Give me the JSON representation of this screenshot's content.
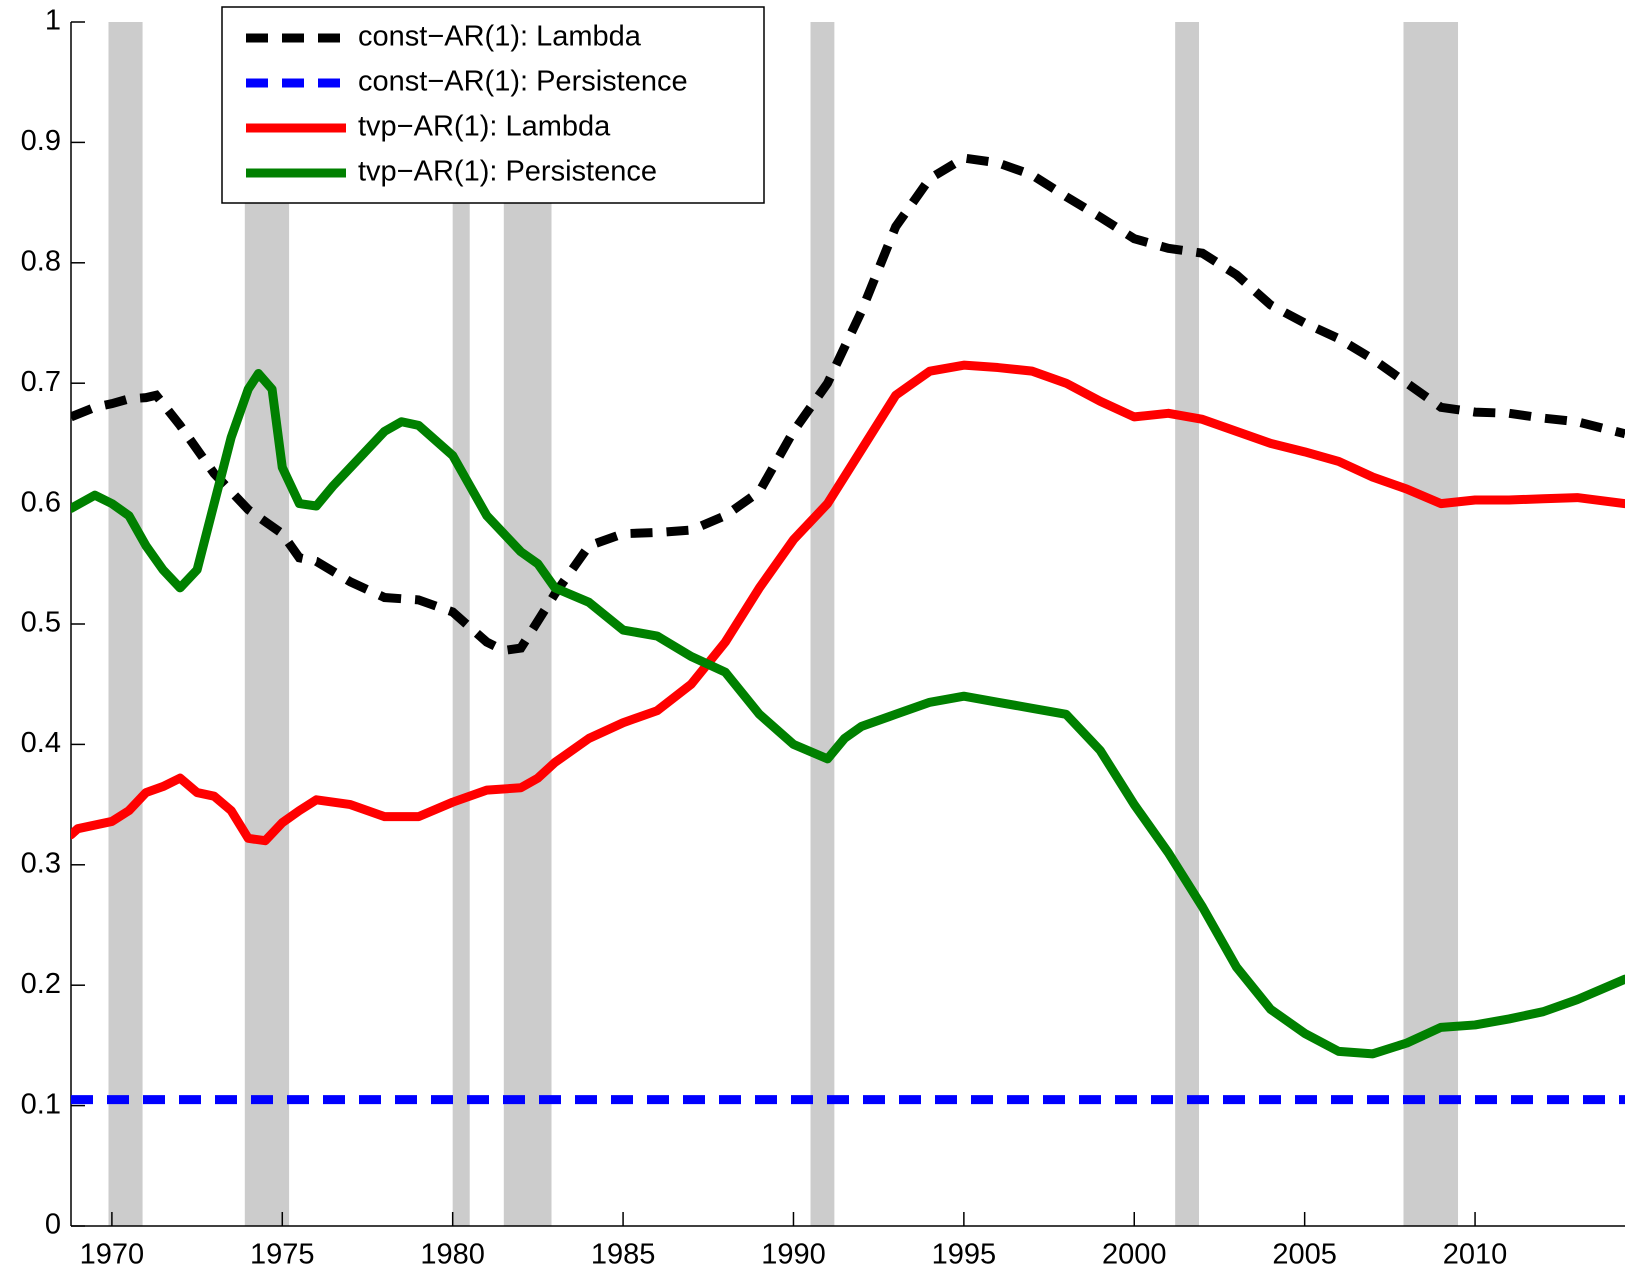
{
  "chart_data": {
    "type": "line",
    "xlim": [
      1968.8,
      2014.4
    ],
    "ylim": [
      0,
      1
    ],
    "xticks": [
      1970,
      1975,
      1980,
      1985,
      1990,
      1995,
      2000,
      2005,
      2010
    ],
    "yticks": [
      0,
      0.1,
      0.2,
      0.3,
      0.4,
      0.5,
      0.6,
      0.7,
      0.8,
      0.9,
      1
    ],
    "legend": "upper left",
    "shade_color": "#cccccc",
    "shaded_periods": [
      [
        1969.9,
        1970.9
      ],
      [
        1973.9,
        1975.2
      ],
      [
        1980.0,
        1980.5
      ],
      [
        1981.5,
        1982.9
      ],
      [
        1990.5,
        1991.2
      ],
      [
        2001.2,
        2001.9
      ],
      [
        2007.9,
        2009.5
      ]
    ],
    "series": [
      {
        "name": "const−AR(1): Lambda",
        "color": "#000000",
        "dashed": true,
        "x": [
          1968.8,
          1969.5,
          1970,
          1970.5,
          1971,
          1971.3,
          1972,
          1973,
          1974,
          1975,
          1975.5,
          1976,
          1977,
          1978,
          1979,
          1980,
          1981,
          1981.5,
          1982,
          1983,
          1984,
          1985,
          1986,
          1987,
          1988,
          1989,
          1990,
          1991,
          1992,
          1993,
          1994,
          1995,
          1996,
          1997,
          1998,
          1999,
          2000,
          2001,
          2002,
          2003,
          2004,
          2005,
          2006,
          2007,
          2008,
          2009,
          2010,
          2011,
          2012,
          2013,
          2014.4
        ],
        "values": [
          0.672,
          0.68,
          0.683,
          0.687,
          0.688,
          0.69,
          0.665,
          0.625,
          0.595,
          0.575,
          0.555,
          0.552,
          0.535,
          0.522,
          0.52,
          0.51,
          0.485,
          0.478,
          0.48,
          0.525,
          0.565,
          0.575,
          0.576,
          0.578,
          0.59,
          0.61,
          0.66,
          0.7,
          0.76,
          0.83,
          0.87,
          0.887,
          0.883,
          0.873,
          0.855,
          0.838,
          0.82,
          0.812,
          0.808,
          0.79,
          0.765,
          0.75,
          0.737,
          0.72,
          0.7,
          0.68,
          0.676,
          0.675,
          0.671,
          0.668,
          0.658
        ]
      },
      {
        "name": "const−AR(1): Persistence",
        "color": "#0000ff",
        "dashed": true,
        "x": [
          1968.8,
          2014.4
        ],
        "values": [
          0.105,
          0.105
        ]
      },
      {
        "name": "tvp−AR(1): Lambda",
        "color": "#ff0000",
        "dashed": false,
        "x": [
          1968.8,
          1969,
          1970,
          1970.5,
          1971,
          1971.5,
          1972,
          1972.5,
          1973,
          1973.5,
          1974,
          1974.5,
          1975,
          1975.5,
          1976,
          1977,
          1978,
          1979,
          1980,
          1981,
          1982,
          1982.5,
          1983,
          1984,
          1985,
          1986,
          1987,
          1988,
          1989,
          1990,
          1991,
          1992,
          1993,
          1994,
          1995,
          1996,
          1997,
          1998,
          1999,
          2000,
          2001,
          2002,
          2003,
          2004,
          2005,
          2006,
          2007,
          2008,
          2009,
          2010,
          2011,
          2012,
          2013,
          2014.4
        ],
        "values": [
          0.325,
          0.33,
          0.336,
          0.345,
          0.36,
          0.365,
          0.372,
          0.36,
          0.357,
          0.345,
          0.322,
          0.32,
          0.335,
          0.345,
          0.354,
          0.35,
          0.34,
          0.34,
          0.352,
          0.362,
          0.364,
          0.372,
          0.385,
          0.405,
          0.418,
          0.428,
          0.45,
          0.485,
          0.53,
          0.57,
          0.6,
          0.645,
          0.69,
          0.71,
          0.715,
          0.713,
          0.71,
          0.7,
          0.685,
          0.672,
          0.675,
          0.67,
          0.66,
          0.65,
          0.643,
          0.635,
          0.622,
          0.612,
          0.6,
          0.603,
          0.603,
          0.604,
          0.605,
          0.6
        ]
      },
      {
        "name": "tvp−AR(1): Persistence",
        "color": "#008000",
        "dashed": false,
        "x": [
          1968.8,
          1969.5,
          1970,
          1970.5,
          1971,
          1971.5,
          1972,
          1972.5,
          1973,
          1973.5,
          1974,
          1974.3,
          1974.7,
          1975,
          1975.5,
          1976,
          1976.5,
          1977,
          1978,
          1978.5,
          1979,
          1980,
          1980.5,
          1981,
          1982,
          1982.5,
          1983,
          1984,
          1985,
          1986,
          1987,
          1988,
          1989,
          1990,
          1991,
          1991.5,
          1992,
          1993,
          1994,
          1995,
          1996,
          1997,
          1998,
          1999,
          2000,
          2001,
          2002,
          2003,
          2004,
          2005,
          2006,
          2007,
          2008,
          2009,
          2010,
          2011,
          2012,
          2013,
          2014.4
        ],
        "values": [
          0.596,
          0.607,
          0.6,
          0.59,
          0.565,
          0.545,
          0.53,
          0.545,
          0.6,
          0.655,
          0.695,
          0.708,
          0.695,
          0.63,
          0.6,
          0.598,
          0.615,
          0.63,
          0.66,
          0.668,
          0.665,
          0.64,
          0.615,
          0.59,
          0.56,
          0.55,
          0.53,
          0.518,
          0.495,
          0.49,
          0.473,
          0.46,
          0.425,
          0.4,
          0.388,
          0.405,
          0.415,
          0.425,
          0.435,
          0.44,
          0.435,
          0.43,
          0.425,
          0.395,
          0.35,
          0.31,
          0.265,
          0.215,
          0.18,
          0.16,
          0.145,
          0.143,
          0.152,
          0.165,
          0.167,
          0.172,
          0.178,
          0.188,
          0.205
        ]
      }
    ]
  }
}
